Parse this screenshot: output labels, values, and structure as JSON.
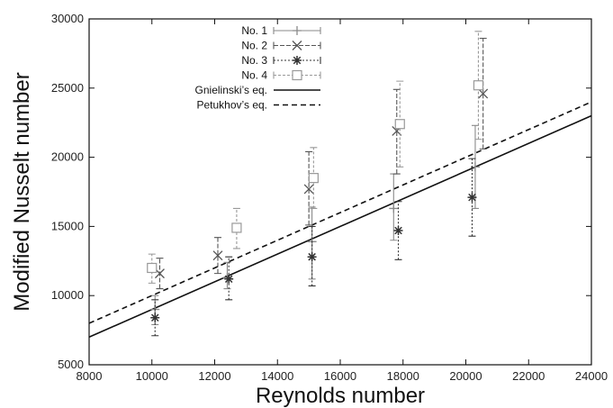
{
  "chart_data": {
    "type": "scatter",
    "title": "",
    "xlabel": "Reynolds number",
    "ylabel": "Modified Nusselt number",
    "xlim": [
      8000,
      24000
    ],
    "ylim": [
      5000,
      30000
    ],
    "xticks": [
      8000,
      10000,
      12000,
      14000,
      16000,
      18000,
      20000,
      22000,
      24000
    ],
    "yticks": [
      5000,
      10000,
      15000,
      20000,
      25000,
      30000
    ],
    "grid": false,
    "legend_position": "top-center",
    "series": [
      {
        "name": "No. 1",
        "marker": "plus",
        "color": "#8a8a8a",
        "dash": "",
        "points": [
          {
            "x": 10100,
            "y": 9000,
            "ylow": 7900,
            "yhigh": 10000
          },
          {
            "x": 12400,
            "y": 11300,
            "ylow": 10500,
            "yhigh": 12400
          },
          {
            "x": 15100,
            "y": 13900,
            "ylow": 11200,
            "yhigh": 16400
          },
          {
            "x": 17700,
            "y": 16300,
            "ylow": 14000,
            "yhigh": 18800
          },
          {
            "x": 20300,
            "y": 19300,
            "ylow": 16300,
            "yhigh": 22300
          }
        ]
      },
      {
        "name": "No. 2",
        "marker": "x",
        "color": "#555555",
        "dash": "5,2",
        "points": [
          {
            "x": 10250,
            "y": 11600,
            "ylow": 10500,
            "yhigh": 12700
          },
          {
            "x": 12100,
            "y": 12900,
            "ylow": 11600,
            "yhigh": 14200
          },
          {
            "x": 15000,
            "y": 17700,
            "ylow": 15100,
            "yhigh": 20400
          },
          {
            "x": 17800,
            "y": 21900,
            "ylow": 18800,
            "yhigh": 24900
          },
          {
            "x": 20550,
            "y": 24600,
            "ylow": 20600,
            "yhigh": 28600
          }
        ]
      },
      {
        "name": "No. 3",
        "marker": "star",
        "color": "#333333",
        "dash": "2,2",
        "points": [
          {
            "x": 10100,
            "y": 8400,
            "ylow": 7100,
            "yhigh": 9700
          },
          {
            "x": 12450,
            "y": 11200,
            "ylow": 9700,
            "yhigh": 12800
          },
          {
            "x": 15100,
            "y": 12800,
            "ylow": 10700,
            "yhigh": 15000
          },
          {
            "x": 17850,
            "y": 14700,
            "ylow": 12600,
            "yhigh": 16800
          },
          {
            "x": 20200,
            "y": 17100,
            "ylow": 14300,
            "yhigh": 19900
          }
        ]
      },
      {
        "name": "No. 4",
        "marker": "square",
        "color": "#999999",
        "dash": "3,2",
        "points": [
          {
            "x": 10000,
            "y": 12000,
            "ylow": 10900,
            "yhigh": 13000
          },
          {
            "x": 12700,
            "y": 14900,
            "ylow": 13400,
            "yhigh": 16300
          },
          {
            "x": 15150,
            "y": 18500,
            "ylow": 16300,
            "yhigh": 20700
          },
          {
            "x": 17900,
            "y": 22400,
            "ylow": 19300,
            "yhigh": 25500
          },
          {
            "x": 20400,
            "y": 25200,
            "ylow": 21300,
            "yhigh": 29100
          }
        ]
      },
      {
        "name": "Gnielinski’s eq.",
        "type": "line",
        "color": "#111111",
        "dash": "",
        "points": [
          {
            "x": 8000,
            "y": 7000
          },
          {
            "x": 24000,
            "y": 23000
          }
        ]
      },
      {
        "name": "Petukhov’s eq.",
        "type": "line",
        "color": "#111111",
        "dash": "6,4",
        "points": [
          {
            "x": 8000,
            "y": 8000
          },
          {
            "x": 24000,
            "y": 24000
          }
        ]
      }
    ]
  }
}
